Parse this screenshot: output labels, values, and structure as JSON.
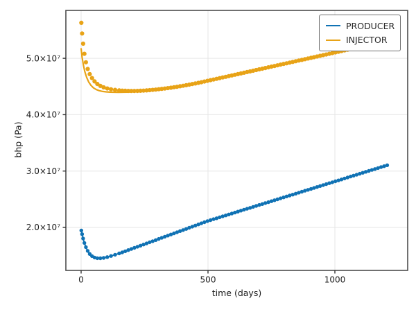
{
  "figure": {
    "background": "#ffffff"
  },
  "axes": {
    "xlabel": "time (days)",
    "ylabel": "bhp (Pa)"
  },
  "legend": {
    "position": "upper right",
    "entries": [
      {
        "label": "PRODUCER",
        "color": "#1072b4"
      },
      {
        "label": "INJECTOR",
        "color": "#e8a317"
      }
    ]
  },
  "chart_data": {
    "type": "line",
    "title": "",
    "xlabel": "time (days)",
    "ylabel": "bhp (Pa)",
    "value_unit": "Pa",
    "value_scale": 10000000,
    "xlim": [
      -60,
      1287
    ],
    "ylim_e7": [
      1.237,
      5.85
    ],
    "x_ticks": {
      "values": [
        0,
        500,
        1000
      ],
      "labels": [
        "0",
        "500",
        "1000"
      ]
    },
    "y_ticks": {
      "values": [
        2,
        3,
        4,
        5
      ],
      "labels": [
        "2.0×10⁷",
        "3.0×10⁷",
        "4.0×10⁷",
        "5.0×10⁷"
      ]
    },
    "grid": true,
    "grid_color": "#e6e6e6",
    "spine_color": "#4d4d4d",
    "tick_color": "#333333",
    "series": [
      {
        "name": "PRODUCER",
        "color": "#1072b4",
        "marker": "circle",
        "marker_radius": 2.7,
        "line_width": 2,
        "markers": [
          [
            1,
            1.946
          ],
          [
            4,
            1.88
          ],
          [
            8,
            1.803
          ],
          [
            13,
            1.724
          ],
          [
            19,
            1.649
          ],
          [
            26,
            1.583
          ],
          [
            34,
            1.529
          ],
          [
            43,
            1.491
          ],
          [
            53,
            1.466
          ],
          [
            64,
            1.453
          ],
          [
            76,
            1.452
          ],
          [
            89,
            1.459
          ],
          [
            103,
            1.473
          ],
          [
            118,
            1.493
          ],
          [
            134,
            1.515
          ],
          [
            150,
            1.538
          ],
          [
            162,
            1.557
          ],
          [
            174,
            1.577
          ],
          [
            186,
            1.597
          ],
          [
            198,
            1.617
          ],
          [
            210,
            1.637
          ],
          [
            222,
            1.656
          ],
          [
            234,
            1.676
          ],
          [
            246,
            1.696
          ],
          [
            258,
            1.716
          ],
          [
            270,
            1.736
          ],
          [
            282,
            1.755
          ],
          [
            294,
            1.775
          ],
          [
            306,
            1.795
          ],
          [
            318,
            1.815
          ],
          [
            330,
            1.835
          ],
          [
            342,
            1.854
          ],
          [
            354,
            1.874
          ],
          [
            366,
            1.894
          ],
          [
            378,
            1.914
          ],
          [
            390,
            1.934
          ],
          [
            402,
            1.953
          ],
          [
            414,
            1.973
          ],
          [
            426,
            1.993
          ],
          [
            438,
            2.013
          ],
          [
            450,
            2.033
          ],
          [
            462,
            2.052
          ],
          [
            474,
            2.072
          ],
          [
            486,
            2.092
          ],
          [
            498,
            2.112
          ],
          [
            510,
            2.129
          ],
          [
            522,
            2.146
          ],
          [
            534,
            2.162
          ],
          [
            546,
            2.179
          ],
          [
            558,
            2.196
          ],
          [
            570,
            2.213
          ],
          [
            582,
            2.23
          ],
          [
            594,
            2.246
          ],
          [
            606,
            2.263
          ],
          [
            618,
            2.28
          ],
          [
            630,
            2.297
          ],
          [
            642,
            2.314
          ],
          [
            654,
            2.33
          ],
          [
            666,
            2.347
          ],
          [
            678,
            2.364
          ],
          [
            690,
            2.381
          ],
          [
            702,
            2.398
          ],
          [
            714,
            2.414
          ],
          [
            726,
            2.431
          ],
          [
            738,
            2.448
          ],
          [
            750,
            2.465
          ],
          [
            762,
            2.482
          ],
          [
            774,
            2.498
          ],
          [
            786,
            2.515
          ],
          [
            798,
            2.532
          ],
          [
            810,
            2.549
          ],
          [
            822,
            2.566
          ],
          [
            834,
            2.582
          ],
          [
            846,
            2.599
          ],
          [
            858,
            2.616
          ],
          [
            870,
            2.633
          ],
          [
            882,
            2.65
          ],
          [
            894,
            2.666
          ],
          [
            906,
            2.683
          ],
          [
            918,
            2.7
          ],
          [
            930,
            2.717
          ],
          [
            942,
            2.734
          ],
          [
            954,
            2.75
          ],
          [
            966,
            2.767
          ],
          [
            978,
            2.784
          ],
          [
            990,
            2.801
          ],
          [
            1002,
            2.818
          ],
          [
            1014,
            2.834
          ],
          [
            1026,
            2.851
          ],
          [
            1038,
            2.868
          ],
          [
            1050,
            2.885
          ],
          [
            1062,
            2.902
          ],
          [
            1074,
            2.918
          ],
          [
            1086,
            2.935
          ],
          [
            1098,
            2.952
          ],
          [
            1110,
            2.969
          ],
          [
            1122,
            2.986
          ],
          [
            1134,
            3.002
          ],
          [
            1146,
            3.019
          ],
          [
            1158,
            3.036
          ],
          [
            1170,
            3.053
          ],
          [
            1182,
            3.07
          ],
          [
            1194,
            3.086
          ],
          [
            1206,
            3.103
          ]
        ]
      },
      {
        "name": "INJECTOR",
        "color": "#e8a317",
        "marker": "circle",
        "marker_radius": 3.1,
        "line_width": 2.2,
        "line": [
          [
            0,
            5.17
          ],
          [
            4,
            5.02
          ],
          [
            9,
            4.88
          ],
          [
            15,
            4.76
          ],
          [
            22,
            4.66
          ],
          [
            30,
            4.58
          ],
          [
            39,
            4.52
          ],
          [
            49,
            4.475
          ],
          [
            60,
            4.445
          ],
          [
            72,
            4.425
          ],
          [
            85,
            4.412
          ],
          [
            99,
            4.404
          ],
          [
            114,
            4.4
          ],
          [
            130,
            4.398
          ],
          [
            147,
            4.397
          ],
          [
            165,
            4.398
          ],
          [
            184,
            4.4
          ],
          [
            204,
            4.404
          ],
          [
            225,
            4.409
          ],
          [
            247,
            4.415
          ],
          [
            270,
            4.422
          ],
          [
            293,
            4.43
          ],
          [
            316,
            4.443
          ],
          [
            340,
            4.458
          ],
          [
            364,
            4.474
          ],
          [
            390,
            4.502
          ],
          [
            414,
            4.523
          ],
          [
            438,
            4.543
          ],
          [
            462,
            4.565
          ],
          [
            486,
            4.588
          ],
          [
            510,
            4.612
          ],
          [
            534,
            4.636
          ],
          [
            558,
            4.66
          ],
          [
            582,
            4.684
          ],
          [
            606,
            4.708
          ],
          [
            630,
            4.732
          ],
          [
            654,
            4.756
          ],
          [
            678,
            4.78
          ],
          [
            702,
            4.804
          ],
          [
            726,
            4.828
          ],
          [
            750,
            4.852
          ],
          [
            774,
            4.876
          ],
          [
            798,
            4.9
          ],
          [
            822,
            4.924
          ],
          [
            846,
            4.948
          ],
          [
            870,
            4.972
          ],
          [
            894,
            4.996
          ],
          [
            918,
            5.02
          ],
          [
            942,
            5.044
          ],
          [
            966,
            5.068
          ],
          [
            990,
            5.092
          ],
          [
            1014,
            5.116
          ],
          [
            1038,
            5.14
          ],
          [
            1062,
            5.164
          ],
          [
            1086,
            5.188
          ],
          [
            1110,
            5.212
          ],
          [
            1134,
            5.236
          ],
          [
            1158,
            5.26
          ],
          [
            1182,
            5.284
          ],
          [
            1206,
            5.308
          ]
        ],
        "markers": [
          [
            1,
            5.63
          ],
          [
            4,
            5.44
          ],
          [
            8,
            5.26
          ],
          [
            13,
            5.08
          ],
          [
            19,
            4.93
          ],
          [
            26,
            4.81
          ],
          [
            34,
            4.72
          ],
          [
            43,
            4.65
          ],
          [
            53,
            4.59
          ],
          [
            64,
            4.545
          ],
          [
            76,
            4.51
          ],
          [
            89,
            4.485
          ],
          [
            103,
            4.465
          ],
          [
            118,
            4.45
          ],
          [
            134,
            4.44
          ],
          [
            150,
            4.43
          ],
          [
            162,
            4.427
          ],
          [
            174,
            4.424
          ],
          [
            186,
            4.422
          ],
          [
            198,
            4.421
          ],
          [
            210,
            4.421
          ],
          [
            222,
            4.422
          ],
          [
            234,
            4.424
          ],
          [
            246,
            4.427
          ],
          [
            258,
            4.431
          ],
          [
            270,
            4.435
          ],
          [
            282,
            4.44
          ],
          [
            294,
            4.445
          ],
          [
            306,
            4.451
          ],
          [
            318,
            4.457
          ],
          [
            330,
            4.464
          ],
          [
            342,
            4.471
          ],
          [
            354,
            4.479
          ],
          [
            366,
            4.487
          ],
          [
            378,
            4.495
          ],
          [
            390,
            4.504
          ],
          [
            402,
            4.513
          ],
          [
            414,
            4.523
          ],
          [
            426,
            4.533
          ],
          [
            438,
            4.543
          ],
          [
            450,
            4.554
          ],
          [
            462,
            4.565
          ],
          [
            474,
            4.576
          ],
          [
            486,
            4.588
          ],
          [
            498,
            4.6
          ],
          [
            510,
            4.612
          ],
          [
            522,
            4.624
          ],
          [
            534,
            4.636
          ],
          [
            546,
            4.648
          ],
          [
            558,
            4.66
          ],
          [
            570,
            4.672
          ],
          [
            582,
            4.684
          ],
          [
            594,
            4.696
          ],
          [
            606,
            4.708
          ],
          [
            618,
            4.72
          ],
          [
            630,
            4.732
          ],
          [
            642,
            4.744
          ],
          [
            654,
            4.756
          ],
          [
            666,
            4.768
          ],
          [
            678,
            4.78
          ],
          [
            690,
            4.792
          ],
          [
            702,
            4.804
          ],
          [
            714,
            4.816
          ],
          [
            726,
            4.828
          ],
          [
            738,
            4.84
          ],
          [
            750,
            4.852
          ],
          [
            762,
            4.864
          ],
          [
            774,
            4.876
          ],
          [
            786,
            4.888
          ],
          [
            798,
            4.9
          ],
          [
            810,
            4.912
          ],
          [
            822,
            4.924
          ],
          [
            834,
            4.936
          ],
          [
            846,
            4.948
          ],
          [
            858,
            4.96
          ],
          [
            870,
            4.972
          ],
          [
            882,
            4.984
          ],
          [
            894,
            4.996
          ],
          [
            906,
            5.008
          ],
          [
            918,
            5.02
          ],
          [
            930,
            5.032
          ],
          [
            942,
            5.044
          ],
          [
            954,
            5.056
          ],
          [
            966,
            5.068
          ],
          [
            978,
            5.08
          ],
          [
            990,
            5.092
          ],
          [
            1002,
            5.104
          ],
          [
            1014,
            5.116
          ],
          [
            1026,
            5.128
          ],
          [
            1038,
            5.14
          ],
          [
            1050,
            5.152
          ],
          [
            1062,
            5.164
          ],
          [
            1074,
            5.176
          ],
          [
            1086,
            5.188
          ],
          [
            1098,
            5.2
          ],
          [
            1110,
            5.212
          ],
          [
            1122,
            5.224
          ],
          [
            1134,
            5.236
          ],
          [
            1146,
            5.248
          ],
          [
            1158,
            5.26
          ],
          [
            1170,
            5.272
          ],
          [
            1182,
            5.284
          ],
          [
            1194,
            5.296
          ],
          [
            1206,
            5.308
          ]
        ]
      }
    ]
  }
}
